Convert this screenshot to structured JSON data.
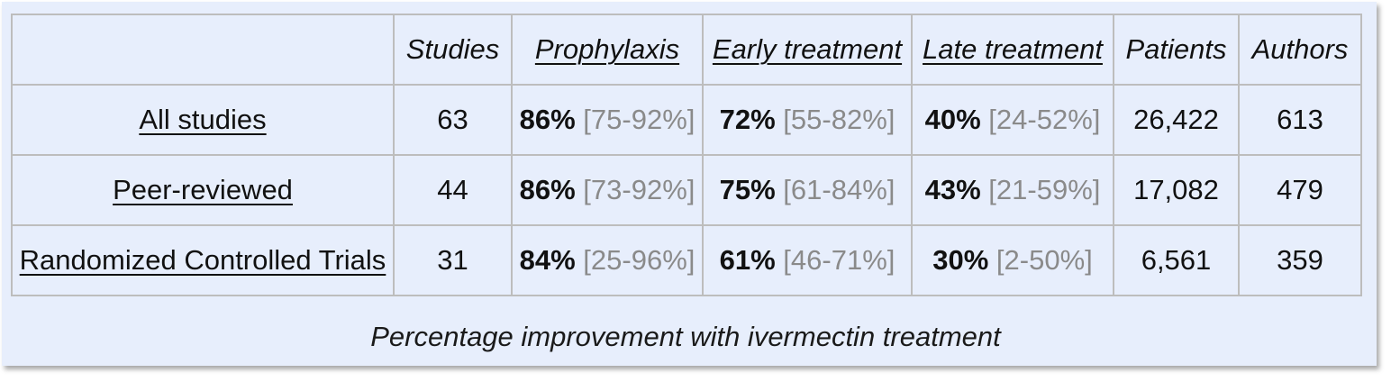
{
  "table": {
    "headers": {
      "corner": "",
      "studies": "Studies",
      "prophylaxis": "Prophylaxis",
      "early": "Early treatment",
      "late": "Late treatment",
      "patients": "Patients",
      "authors": "Authors"
    },
    "rows": [
      {
        "label": "All studies",
        "studies": "63",
        "prophylaxis": {
          "pct": "86%",
          "ci": "[75-92%]"
        },
        "early": {
          "pct": "72%",
          "ci": "[55-82%]"
        },
        "late": {
          "pct": "40%",
          "ci": "[24-52%]"
        },
        "patients": "26,422",
        "authors": "613"
      },
      {
        "label": "Peer-reviewed",
        "studies": "44",
        "prophylaxis": {
          "pct": "86%",
          "ci": "[73-92%]"
        },
        "early": {
          "pct": "75%",
          "ci": "[61-84%]"
        },
        "late": {
          "pct": "43%",
          "ci": "[21-59%]"
        },
        "patients": "17,082",
        "authors": "479"
      },
      {
        "label": "Randomized Controlled Trials",
        "studies": "31",
        "prophylaxis": {
          "pct": "84%",
          "ci": "[25-96%]"
        },
        "early": {
          "pct": "61%",
          "ci": "[46-71%]"
        },
        "late": {
          "pct": "30%",
          "ci": "[2-50%]"
        },
        "patients": "6,561",
        "authors": "359"
      }
    ]
  },
  "caption": "Percentage improvement with ivermectin treatment",
  "colors": {
    "panel_background": "#e7eefc",
    "grid_border": "#bdbdbd",
    "ci_text": "#8a8a8a"
  }
}
